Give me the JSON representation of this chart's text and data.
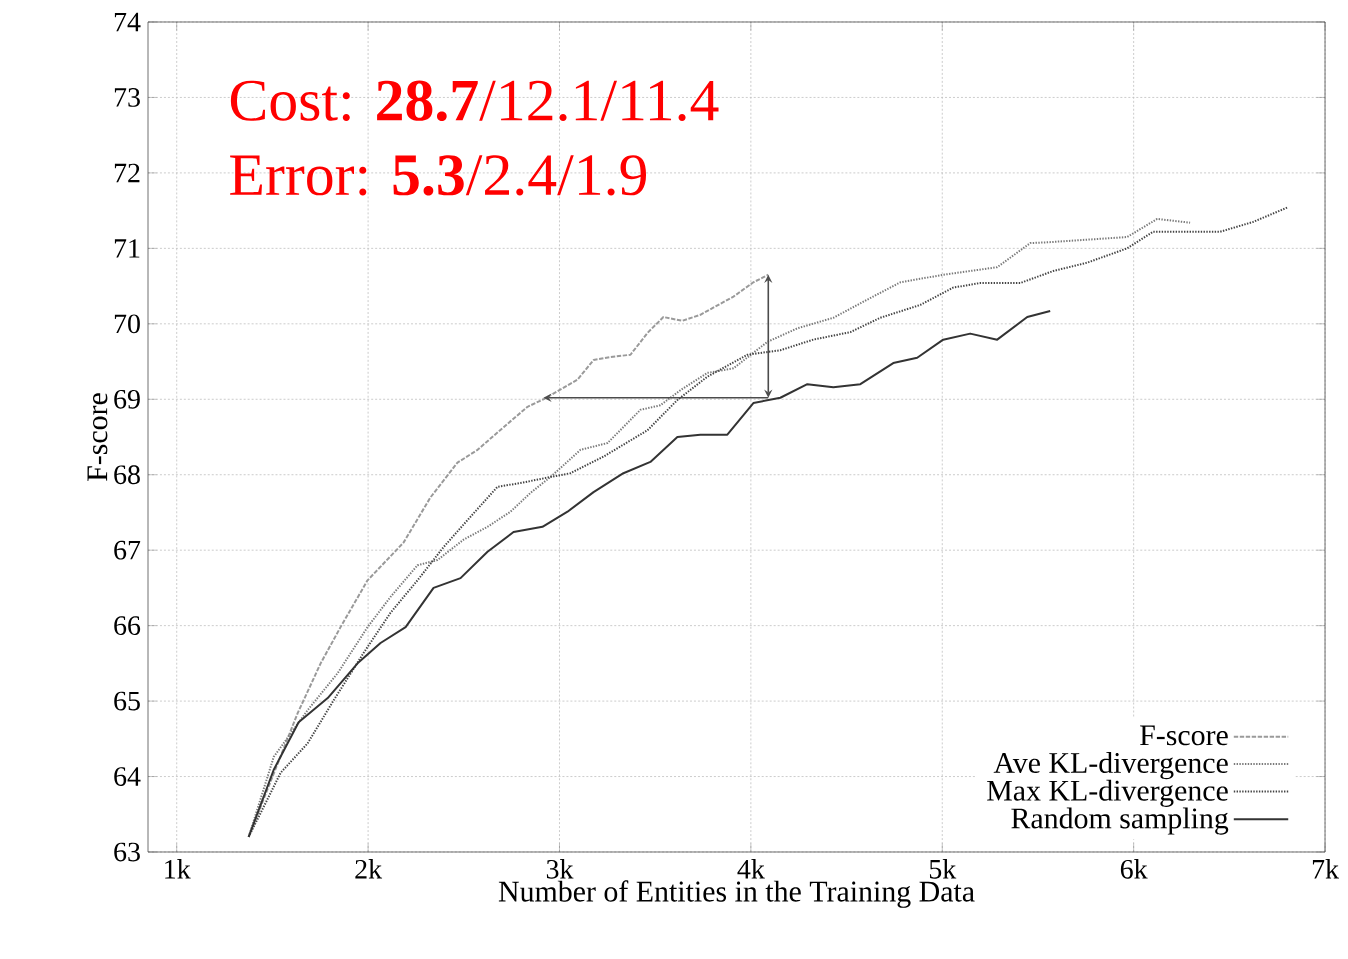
{
  "chart_data": {
    "type": "line",
    "xlabel": "Number of Entities in the Training Data",
    "ylabel": "F-score",
    "annotations": [
      "Cost: **28.7**/12.1/11.4",
      "Error: **5.3**/2.4/1.9"
    ],
    "xlim": [
      850,
      7000
    ],
    "ylim": [
      63,
      74
    ],
    "xticks": [
      {
        "value": 1000,
        "label": "1k"
      },
      {
        "value": 2000,
        "label": "2k"
      },
      {
        "value": 3000,
        "label": "3k"
      },
      {
        "value": 4000,
        "label": "4k"
      },
      {
        "value": 5000,
        "label": "5k"
      },
      {
        "value": 6000,
        "label": "6k"
      },
      {
        "value": 7000,
        "label": "7k"
      }
    ],
    "yticks": [
      63,
      64,
      65,
      66,
      67,
      68,
      69,
      70,
      71,
      72,
      73,
      74
    ],
    "grid": true,
    "legend": "bottom right",
    "series": [
      {
        "name": "F-score",
        "color": "#9a9a9a",
        "line_style": "dashed",
        "x": [
          1376,
          1632,
          1752,
          1856,
          1997,
          2185,
          2326,
          2467,
          2572,
          2708,
          2833,
          2916,
          3094,
          3178,
          3266,
          3371,
          3460,
          3543,
          3642,
          3736,
          3909,
          4013,
          4091
        ],
        "values": [
          63.2,
          64.84,
          65.5,
          65.98,
          66.6,
          67.1,
          67.7,
          68.16,
          68.33,
          68.63,
          68.9,
          69.0,
          69.26,
          69.52,
          69.56,
          69.59,
          69.88,
          70.09,
          70.04,
          70.12,
          70.36,
          70.55,
          70.65
        ]
      },
      {
        "name": "Ave KL-divergence",
        "color": "#7a7a7a",
        "line_style": "dotted",
        "x": [
          1376,
          1507,
          1684,
          1841,
          1997,
          2117,
          2258,
          2363,
          2499,
          2624,
          2744,
          2849,
          2953,
          3110,
          3251,
          3423,
          3527,
          3632,
          3773,
          3909,
          4086,
          4243,
          4431,
          4608,
          4781,
          5005,
          5287,
          5460,
          5548,
          5966,
          6123,
          6295
        ],
        "values": [
          63.2,
          64.26,
          64.88,
          65.37,
          65.98,
          66.38,
          66.8,
          66.87,
          67.14,
          67.31,
          67.51,
          67.76,
          67.97,
          68.33,
          68.42,
          68.86,
          68.92,
          69.12,
          69.35,
          69.41,
          69.76,
          69.94,
          70.08,
          70.32,
          70.55,
          70.65,
          70.75,
          71.07,
          71.08,
          71.15,
          71.39,
          71.34
        ]
      },
      {
        "name": "Max KL-divergence",
        "color": "#444444",
        "line_style": "dotted",
        "x": [
          1376,
          1543,
          1684,
          1820,
          1977,
          2117,
          2258,
          2394,
          2520,
          2676,
          2796,
          2953,
          3057,
          3230,
          3460,
          3616,
          3773,
          3982,
          4154,
          4326,
          4520,
          4676,
          4885,
          5057,
          5198,
          5407,
          5580,
          5757,
          5966,
          6102,
          6452,
          6624,
          6802
        ],
        "values": [
          63.2,
          64.05,
          64.44,
          65.01,
          65.64,
          66.17,
          66.6,
          67.04,
          67.4,
          67.84,
          67.89,
          67.97,
          68.02,
          68.24,
          68.59,
          68.99,
          69.3,
          69.59,
          69.65,
          69.79,
          69.89,
          70.08,
          70.25,
          70.48,
          70.54,
          70.54,
          70.7,
          70.81,
          71.0,
          71.22,
          71.22,
          71.35,
          71.54
        ]
      },
      {
        "name": "Random sampling",
        "color": "#333333",
        "line_style": "solid",
        "x": [
          1376,
          1507,
          1637,
          1789,
          1945,
          2065,
          2196,
          2342,
          2483,
          2624,
          2760,
          2911,
          3042,
          3178,
          3334,
          3475,
          3616,
          3736,
          3877,
          4013,
          4154,
          4295,
          4431,
          4572,
          4744,
          4869,
          5005,
          5146,
          5287,
          5444,
          5564
        ],
        "values": [
          63.2,
          64.09,
          64.72,
          65.04,
          65.5,
          65.77,
          65.98,
          66.5,
          66.63,
          66.98,
          67.24,
          67.31,
          67.51,
          67.77,
          68.02,
          68.17,
          68.5,
          68.53,
          68.53,
          68.95,
          69.02,
          69.2,
          69.16,
          69.2,
          69.48,
          69.55,
          69.79,
          69.87,
          69.79,
          70.09,
          70.17
        ]
      }
    ]
  }
}
